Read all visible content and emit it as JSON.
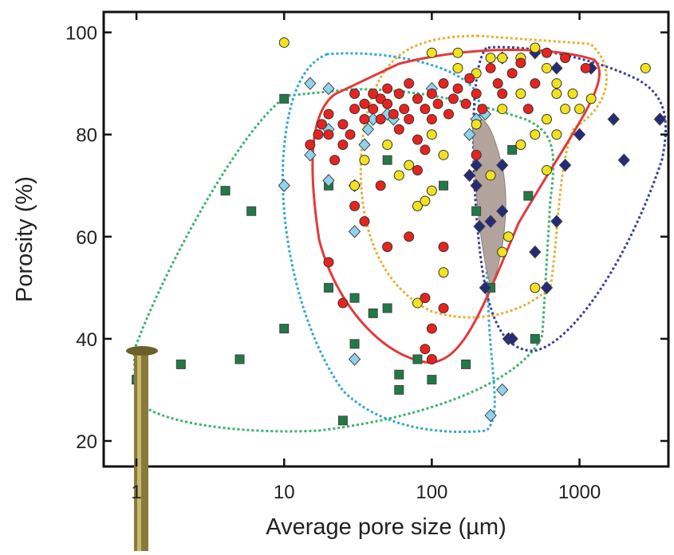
{
  "chart_data": {
    "type": "scatter",
    "xlabel": "Average pore size (µm)",
    "ylabel": "Porosity (%)",
    "xscale": "log",
    "xlim": [
      0.6,
      4000
    ],
    "ylim": [
      15,
      104
    ],
    "xticks": [
      1,
      10,
      100,
      1000
    ],
    "yticks": [
      20,
      40,
      60,
      80,
      100
    ],
    "series": [
      {
        "color": "#1f7a45",
        "marker": "square",
        "x": [
          1,
          2,
          4,
          5,
          6,
          10,
          10,
          20,
          20,
          25,
          30,
          30,
          40,
          50,
          50,
          60,
          60,
          80,
          100,
          120,
          170,
          200,
          250,
          350,
          450,
          500
        ],
        "values": [
          32,
          35,
          69,
          36,
          65,
          42,
          87,
          70,
          50,
          24,
          39,
          48,
          45,
          46,
          75,
          33,
          30,
          36,
          32,
          70,
          35,
          65,
          50,
          77,
          68,
          40
        ]
      },
      {
        "color": "#8fd3ee",
        "marker": "diamond",
        "x": [
          10,
          15,
          15,
          20,
          20,
          20,
          30,
          30,
          30,
          35,
          37,
          40,
          50,
          55,
          100,
          180,
          200,
          230,
          250,
          300
        ],
        "values": [
          70,
          76,
          90,
          89,
          81,
          71,
          70,
          61,
          36,
          78,
          81,
          83,
          84,
          83,
          89,
          80,
          83,
          84,
          25,
          30
        ]
      },
      {
        "color": "#232a78",
        "marker": "diamond",
        "x": [
          180,
          200,
          200,
          210,
          230,
          250,
          300,
          300,
          300,
          330,
          350,
          500,
          500,
          600,
          700,
          700,
          800,
          1000,
          1200,
          1700,
          2000,
          3500
        ],
        "values": [
          72,
          74,
          70,
          62,
          50,
          63,
          65,
          74,
          95,
          40,
          40,
          57,
          96,
          50,
          63,
          93,
          74,
          80,
          93,
          83,
          75,
          83
        ]
      },
      {
        "color": "#f2e21c",
        "marker": "circle",
        "x": [
          10,
          100,
          150,
          150,
          200,
          250,
          300,
          400,
          500,
          600,
          700,
          900,
          1200,
          2800,
          30,
          35,
          50,
          60,
          70,
          80,
          90,
          100,
          120,
          80,
          300,
          330,
          500,
          600,
          400,
          500,
          700,
          800,
          400,
          200,
          250,
          100,
          120,
          600,
          300,
          700,
          1000
        ],
        "values": [
          98,
          96,
          96,
          93,
          92,
          95,
          95,
          95,
          97,
          93,
          90,
          88,
          87,
          93,
          70,
          75,
          78,
          72,
          74,
          66,
          67,
          69,
          53,
          47,
          57,
          60,
          50,
          73,
          78,
          80,
          80,
          85,
          88,
          82,
          72,
          80,
          76,
          83,
          85,
          88,
          85
        ]
      },
      {
        "color": "#e8231f",
        "marker": "circle",
        "x": [
          15,
          17,
          18,
          20,
          20,
          22,
          25,
          25,
          28,
          30,
          30,
          35,
          35,
          40,
          40,
          45,
          45,
          50,
          50,
          55,
          60,
          60,
          65,
          70,
          70,
          80,
          80,
          90,
          90,
          100,
          100,
          110,
          120,
          130,
          140,
          150,
          170,
          180,
          200,
          220,
          250,
          280,
          300,
          350,
          400,
          450,
          500,
          600,
          800,
          1100,
          20,
          25,
          30,
          35,
          50,
          70,
          80,
          90,
          100,
          100,
          120,
          90,
          120,
          200,
          45
        ],
        "values": [
          78,
          80,
          82,
          84,
          80,
          75,
          78,
          82,
          80,
          85,
          88,
          86,
          83,
          88,
          85,
          87,
          83,
          89,
          86,
          84,
          88,
          81,
          85,
          90,
          83,
          87,
          79,
          85,
          77,
          88,
          83,
          86,
          90,
          84,
          87,
          89,
          86,
          91,
          88,
          85,
          93,
          90,
          88,
          92,
          94,
          85,
          90,
          96,
          95,
          93,
          55,
          47,
          66,
          63,
          58,
          60,
          73,
          38,
          36,
          42,
          46,
          48,
          58,
          76,
          70
        ]
      }
    ]
  }
}
